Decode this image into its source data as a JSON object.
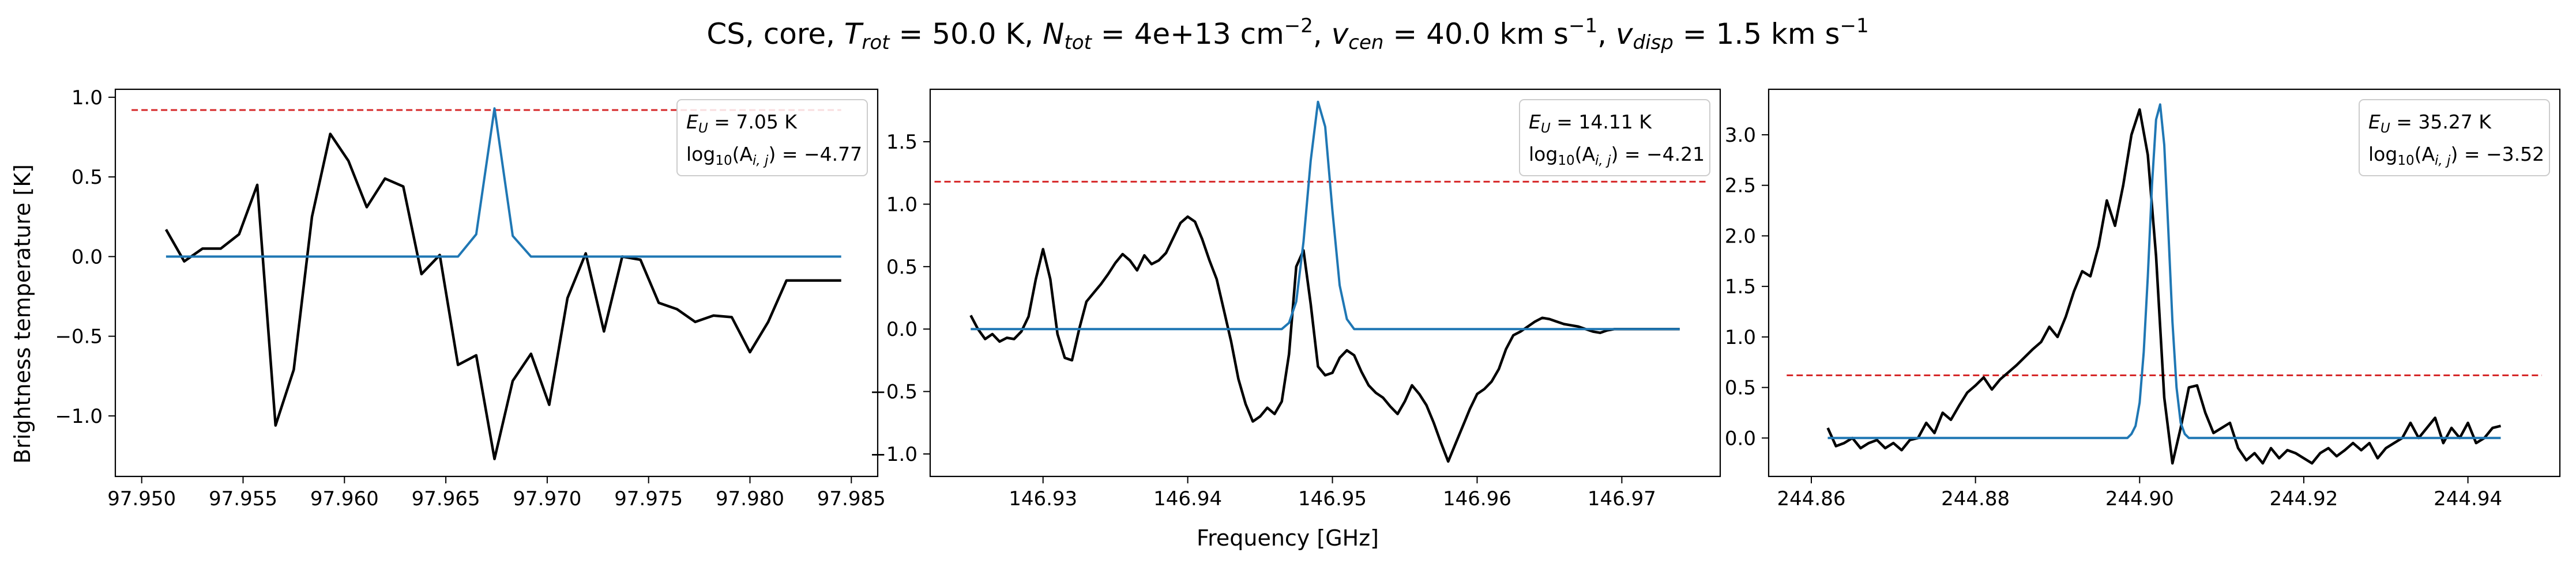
{
  "figure": {
    "title": "CS, core, T_rot = 50.0 K, N_tot = 4e+13 cm^-2, v_cen = 40.0 km s^-1, v_disp = 1.5 km s^-1",
    "title_parts": {
      "a": "CS, core, ",
      "trot_sym": "T",
      "trot_sub": "rot",
      "trot_val": " = 50.0 K, ",
      "ntot_sym": "N",
      "ntot_sub": "tot",
      "ntot_val": " = 4e+13 cm",
      "ntot_exp": "−2",
      "ntot_sep": ", ",
      "vcen_sym": "v",
      "vcen_sub": "cen",
      "vcen_val": " = 40.0 km s",
      "vcen_exp": "−1",
      "vcen_sep": ", ",
      "vdisp_sym": "v",
      "vdisp_sub": "disp",
      "vdisp_val": " = 1.5 km s",
      "vdisp_exp": "−1"
    },
    "xlabel": "Frequency [GHz]",
    "ylabel": "Brightness temperature [K]",
    "colors": {
      "observed": "#000000",
      "model": "#1f77b4",
      "threshold": "#d62728"
    }
  },
  "chart_data": [
    {
      "type": "line",
      "xlim": [
        97.9487,
        97.9863
      ],
      "ylim": [
        -1.38,
        1.05
      ],
      "xticks": [
        97.95,
        97.955,
        97.96,
        97.965,
        97.97,
        97.975,
        97.98,
        97.985
      ],
      "xtick_labels": [
        "97.950",
        "97.955",
        "97.960",
        "97.965",
        "97.970",
        "97.975",
        "97.980",
        "97.985"
      ],
      "yticks": [
        -1.0,
        -0.5,
        0.0,
        0.5,
        1.0
      ],
      "ytick_labels": [
        "−1.0",
        "−0.5",
        "0.0",
        "0.5",
        "1.0"
      ],
      "annotation": {
        "eu": "E_U = 7.05 K",
        "eu_sym": "E",
        "eu_sub": "U",
        "eu_val": " = 7.05 K",
        "log": "log10(A_i,j) = −4.77",
        "log_pre": "log",
        "log_sub10": "10",
        "log_mid": "(A",
        "log_subij": "i, j",
        "log_val": ") = −4.77"
      },
      "threshold": {
        "y": 0.92,
        "x": [
          97.9495,
          97.9845
        ]
      },
      "series": [
        {
          "role": "observed",
          "x": [
            97.9512,
            97.9521,
            97.953,
            97.9539,
            97.9548,
            97.9557,
            97.9566,
            97.9575,
            97.9584,
            97.9593,
            97.9602,
            97.9611,
            97.962,
            97.9629,
            97.9638,
            97.9647,
            97.9656,
            97.9665,
            97.9674,
            97.9683,
            97.9692,
            97.9701,
            97.971,
            97.9719,
            97.9728,
            97.9737,
            97.9746,
            97.9755,
            97.9764,
            97.9773,
            97.9782,
            97.9791,
            97.98,
            97.9809,
            97.9818,
            97.9827,
            97.9836,
            97.9845
          ],
          "y": [
            0.17,
            -0.03,
            0.05,
            0.05,
            0.14,
            0.45,
            -1.06,
            -0.71,
            0.25,
            0.77,
            0.6,
            0.31,
            0.49,
            0.44,
            -0.11,
            0.01,
            -0.68,
            -0.62,
            -1.27,
            -0.78,
            -0.61,
            -0.93,
            -0.26,
            0.02,
            -0.47,
            0.0,
            -0.02,
            -0.29,
            -0.33,
            -0.41,
            -0.37,
            -0.38,
            -0.6,
            -0.41,
            -0.15,
            -0.15,
            -0.15,
            -0.15
          ]
        },
        {
          "role": "model",
          "x": [
            97.9512,
            97.9656,
            97.9665,
            97.9674,
            97.9683,
            97.9692,
            97.9845
          ],
          "y": [
            0.0,
            0.0,
            0.14,
            0.93,
            0.13,
            0.0,
            0.0
          ]
        }
      ]
    },
    {
      "type": "line",
      "xlim": [
        146.9222,
        146.9768
      ],
      "ylim": [
        -1.18,
        1.92
      ],
      "xticks": [
        146.93,
        146.94,
        146.95,
        146.96,
        146.97
      ],
      "xtick_labels": [
        "146.93",
        "146.94",
        "146.95",
        "146.96",
        "146.97"
      ],
      "yticks": [
        -1.0,
        -0.5,
        0.0,
        0.5,
        1.0,
        1.5
      ],
      "ytick_labels": [
        "−1.0",
        "−0.5",
        "0.0",
        "0.5",
        "1.0",
        "1.5"
      ],
      "annotation": {
        "eu": "E_U = 14.11 K",
        "eu_sym": "E",
        "eu_sub": "U",
        "eu_val": " = 14.11 K",
        "log": "log10(A_i,j) = −4.21",
        "log_pre": "log",
        "log_sub10": "10",
        "log_mid": "(A",
        "log_subij": "i, j",
        "log_val": ") = −4.21"
      },
      "threshold": {
        "y": 1.18,
        "x": [
          146.9225,
          146.976
        ]
      },
      "series": [
        {
          "role": "observed",
          "x": [
            146.925,
            146.9255,
            146.926,
            146.9265,
            146.927,
            146.9275,
            146.928,
            146.9285,
            146.929,
            146.9295,
            146.93,
            146.9305,
            146.931,
            146.9315,
            146.932,
            146.9325,
            146.933,
            146.9335,
            146.934,
            146.9345,
            146.935,
            146.9355,
            146.936,
            146.9365,
            146.937,
            146.9375,
            146.938,
            146.9385,
            146.939,
            146.9395,
            146.94,
            146.9405,
            146.941,
            146.9415,
            146.942,
            146.9425,
            146.943,
            146.9435,
            146.944,
            146.9445,
            146.945,
            146.9455,
            146.946,
            146.9465,
            146.947,
            146.9475,
            146.948,
            146.9485,
            146.949,
            146.9495,
            146.95,
            146.9505,
            146.951,
            146.9515,
            146.952,
            146.9525,
            146.953,
            146.9535,
            146.954,
            146.9545,
            146.955,
            146.9555,
            146.956,
            146.9565,
            146.957,
            146.9575,
            146.958,
            146.9585,
            146.959,
            146.9595,
            146.96,
            146.9605,
            146.961,
            146.9615,
            146.962,
            146.9625,
            146.963,
            146.9635,
            146.964,
            146.9645,
            146.965,
            146.9655,
            146.966,
            146.9665,
            146.967,
            146.9675,
            146.968,
            146.9685,
            146.969,
            146.9695,
            146.97,
            146.9705,
            146.971,
            146.9715,
            146.972,
            146.9725,
            146.973,
            146.9735,
            146.974
          ],
          "y": [
            0.11,
            0.0,
            -0.08,
            -0.04,
            -0.1,
            -0.07,
            -0.08,
            -0.02,
            0.1,
            0.4,
            0.64,
            0.4,
            -0.04,
            -0.23,
            -0.25,
            0.0,
            0.22,
            0.29,
            0.36,
            0.44,
            0.53,
            0.6,
            0.55,
            0.47,
            0.59,
            0.52,
            0.55,
            0.61,
            0.73,
            0.85,
            0.9,
            0.86,
            0.72,
            0.55,
            0.4,
            0.15,
            -0.1,
            -0.4,
            -0.6,
            -0.74,
            -0.7,
            -0.63,
            -0.68,
            -0.58,
            -0.2,
            0.5,
            0.63,
            0.2,
            -0.3,
            -0.37,
            -0.35,
            -0.23,
            -0.17,
            -0.21,
            -0.34,
            -0.45,
            -0.51,
            -0.55,
            -0.62,
            -0.68,
            -0.58,
            -0.45,
            -0.52,
            -0.61,
            -0.75,
            -0.91,
            -1.06,
            -0.92,
            -0.78,
            -0.64,
            -0.52,
            -0.48,
            -0.42,
            -0.32,
            -0.16,
            -0.05,
            -0.02,
            0.02,
            0.06,
            0.09,
            0.08,
            0.06,
            0.04,
            0.03,
            0.02,
            0.0,
            -0.02,
            -0.03,
            -0.01,
            0.0,
            0.0,
            0.0,
            0.0,
            0.0,
            0.0,
            0.0,
            0.0,
            0.0,
            0.0
          ]
        },
        {
          "role": "model",
          "x": [
            146.925,
            146.9465,
            146.947,
            146.9475,
            146.948,
            146.9485,
            146.949,
            146.9495,
            146.95,
            146.9505,
            146.951,
            146.9515,
            146.974
          ],
          "y": [
            0.0,
            0.0,
            0.05,
            0.22,
            0.7,
            1.35,
            1.82,
            1.62,
            0.95,
            0.35,
            0.08,
            0.0,
            0.0
          ]
        }
      ]
    },
    {
      "type": "line",
      "xlim": [
        244.8548,
        244.9512
      ],
      "ylim": [
        -0.38,
        3.45
      ],
      "xticks": [
        244.86,
        244.88,
        244.9,
        244.92,
        244.94
      ],
      "xtick_labels": [
        "244.86",
        "244.88",
        "244.90",
        "244.92",
        "244.94"
      ],
      "yticks": [
        0.0,
        0.5,
        1.0,
        1.5,
        2.0,
        2.5,
        3.0
      ],
      "ytick_labels": [
        "0.0",
        "0.5",
        "1.0",
        "1.5",
        "2.0",
        "2.5",
        "3.0"
      ],
      "annotation": {
        "eu": "E_U = 35.27 K",
        "eu_sym": "E",
        "eu_sub": "U",
        "eu_val": " = 35.27 K",
        "log": "log10(A_i,j) = −3.52",
        "log_pre": "log",
        "log_sub10": "10",
        "log_mid": "(A",
        "log_subij": "i, j",
        "log_val": ") = −3.52"
      },
      "threshold": {
        "y": 0.62,
        "x": [
          244.857,
          244.949
        ]
      },
      "series": [
        {
          "role": "observed",
          "x": [
            244.862,
            244.863,
            244.864,
            244.865,
            244.866,
            244.867,
            244.868,
            244.869,
            244.87,
            244.871,
            244.872,
            244.873,
            244.874,
            244.875,
            244.876,
            244.877,
            244.878,
            244.879,
            244.88,
            244.881,
            244.882,
            244.883,
            244.884,
            244.885,
            244.886,
            244.887,
            244.888,
            244.889,
            244.89,
            244.891,
            244.892,
            244.893,
            244.894,
            244.895,
            244.896,
            244.897,
            244.898,
            244.899,
            244.9,
            244.901,
            244.902,
            244.903,
            244.904,
            244.905,
            244.906,
            244.907,
            244.908,
            244.909,
            244.91,
            244.911,
            244.912,
            244.913,
            244.914,
            244.915,
            244.916,
            244.917,
            244.918,
            244.919,
            244.92,
            244.921,
            244.922,
            244.923,
            244.924,
            244.925,
            244.926,
            244.927,
            244.928,
            244.929,
            244.93,
            244.931,
            244.932,
            244.933,
            244.934,
            244.935,
            244.936,
            244.937,
            244.938,
            244.939,
            244.94,
            244.941,
            244.942,
            244.943,
            244.944
          ],
          "y": [
            0.1,
            -0.08,
            -0.05,
            0.0,
            -0.1,
            -0.05,
            -0.02,
            -0.1,
            -0.05,
            -0.12,
            -0.02,
            0.0,
            0.15,
            0.05,
            0.25,
            0.18,
            0.32,
            0.45,
            0.52,
            0.6,
            0.48,
            0.58,
            0.65,
            0.72,
            0.8,
            0.88,
            0.95,
            1.1,
            1.0,
            1.2,
            1.45,
            1.65,
            1.6,
            1.9,
            2.35,
            2.1,
            2.5,
            3.0,
            3.25,
            2.8,
            1.8,
            0.4,
            -0.25,
            0.1,
            0.5,
            0.52,
            0.25,
            0.05,
            0.1,
            0.15,
            -0.1,
            -0.22,
            -0.15,
            -0.25,
            -0.1,
            -0.2,
            -0.12,
            -0.15,
            -0.2,
            -0.25,
            -0.15,
            -0.1,
            -0.18,
            -0.12,
            -0.05,
            -0.12,
            -0.05,
            -0.2,
            -0.1,
            -0.05,
            0.0,
            0.15,
            0.0,
            0.1,
            0.2,
            -0.05,
            0.1,
            0.0,
            0.15,
            -0.05,
            0.0,
            0.1,
            0.12
          ]
        },
        {
          "role": "model",
          "x": [
            244.862,
            244.8985,
            244.899,
            244.8995,
            244.9,
            244.9005,
            244.901,
            244.9015,
            244.902,
            244.9025,
            244.903,
            244.9035,
            244.904,
            244.9045,
            244.905,
            244.9055,
            244.906,
            244.944
          ],
          "y": [
            0.0,
            0.0,
            0.04,
            0.12,
            0.35,
            0.85,
            1.6,
            2.5,
            3.15,
            3.3,
            2.9,
            2.05,
            1.15,
            0.5,
            0.15,
            0.04,
            0.0,
            0.0
          ]
        }
      ]
    }
  ]
}
